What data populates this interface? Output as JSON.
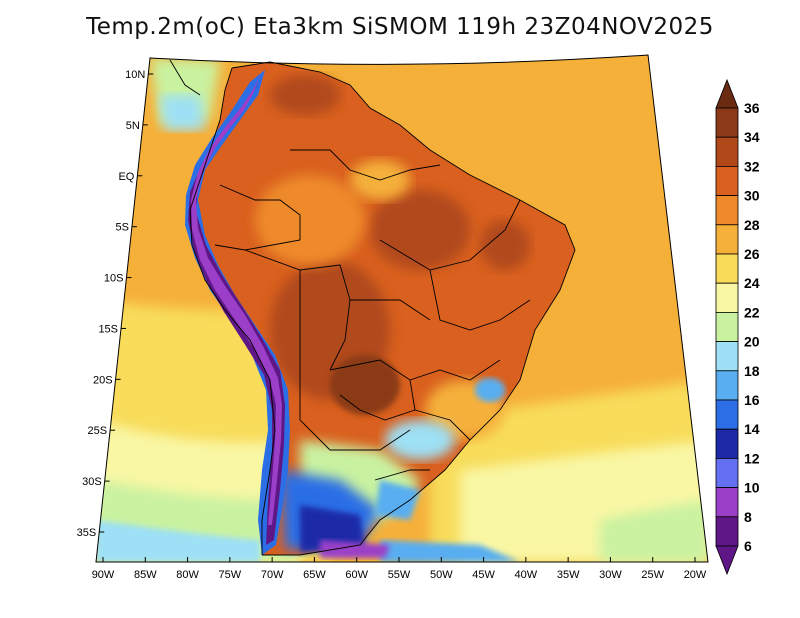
{
  "title": "Temp.2m(oC) Eta3km SiSMOM 119h 23Z04NOV2025",
  "map": {
    "variable": "2 m air temperature",
    "units": "oC",
    "projection": "lat-lon conic style",
    "lat_labels": [
      "10N",
      "5N",
      "EQ",
      "5S",
      "10S",
      "15S",
      "20S",
      "25S",
      "30S",
      "35S"
    ],
    "lon_labels": [
      "90W",
      "85W",
      "80W",
      "75W",
      "70W",
      "65W",
      "60W",
      "55W",
      "50W",
      "45W",
      "40W",
      "35W",
      "30W",
      "25W",
      "20W"
    ],
    "lat_values": [
      10,
      5,
      0,
      -5,
      -10,
      -15,
      -20,
      -25,
      -30,
      -35
    ],
    "lon_values": [
      -90,
      -85,
      -80,
      -75,
      -70,
      -65,
      -60,
      -55,
      -50,
      -45,
      -40,
      -35,
      -30,
      -25,
      -20
    ]
  },
  "colorbar": {
    "labels": [
      "36",
      "34",
      "32",
      "30",
      "28",
      "26",
      "24",
      "22",
      "20",
      "18",
      "16",
      "14",
      "12",
      "10",
      "8",
      "6"
    ],
    "colors": {
      "above_36": "#6b2a12",
      "34_36": "#8a3a18",
      "32_34": "#b0481a",
      "30_32": "#d9601e",
      "28_30": "#ee8a2a",
      "26_28": "#f5b03a",
      "24_26": "#f8dc5a",
      "22_24": "#f9f7a4",
      "20_22": "#c9f2a0",
      "18_20": "#9ee0f5",
      "16_18": "#58aef0",
      "14_16": "#2c6ee6",
      "12_14": "#1c2aa8",
      "10_12": "#6470f2",
      "8_10": "#9b3fc9",
      "6_8": "#5f1687",
      "below_6": "#5f1687"
    }
  }
}
